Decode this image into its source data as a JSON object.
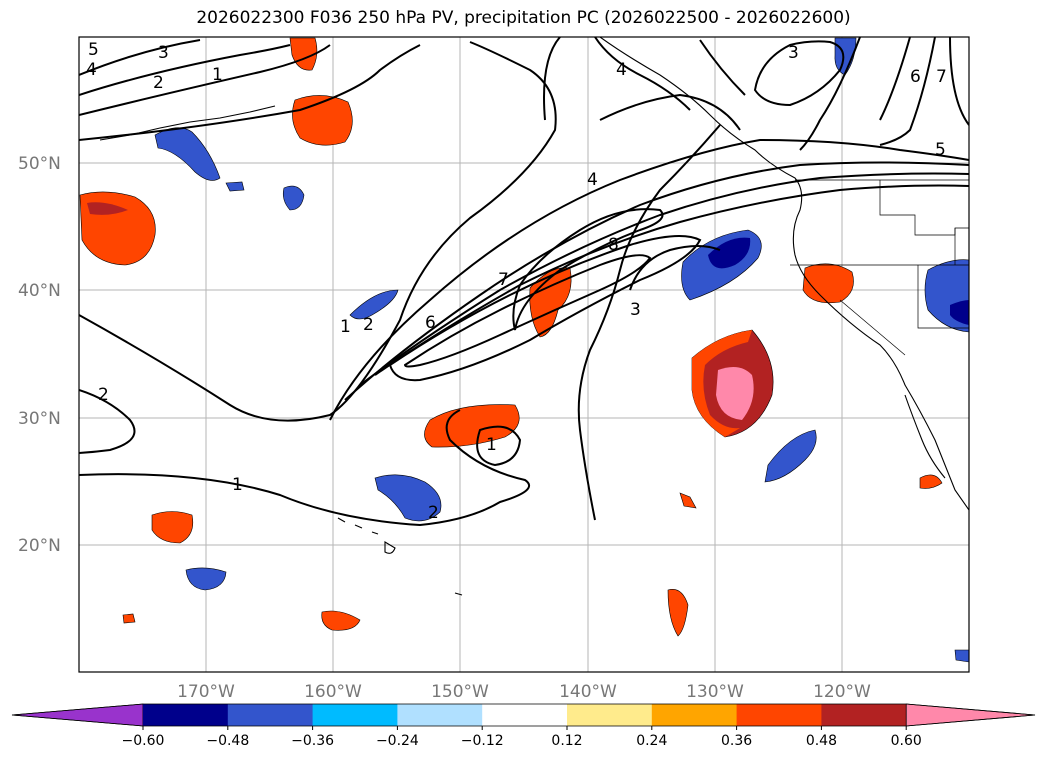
{
  "title": "2026022300 F036 250 hPa PV, precipitation PC (2026022500 - 2026022600)",
  "map": {
    "lat_labels": [
      {
        "label": "50°N",
        "lat": 50
      },
      {
        "label": "40°N",
        "lat": 40
      },
      {
        "label": "30°N",
        "lat": 30
      },
      {
        "label": "20°N",
        "lat": 20
      }
    ],
    "lon_labels": [
      {
        "label": "170°W",
        "lon": -170
      },
      {
        "label": "160°W",
        "lon": -160
      },
      {
        "label": "150°W",
        "lon": -150
      },
      {
        "label": "140°W",
        "lon": -140
      },
      {
        "label": "130°W",
        "lon": -130
      },
      {
        "label": "120°W",
        "lon": -120
      }
    ],
    "extent": {
      "lon_min": -180,
      "lon_max": -110,
      "lat_min": 10,
      "lat_max": 60
    },
    "pv_contour_labels": [
      "5",
      "4",
      "3",
      "2",
      "1",
      "4",
      "3",
      "6",
      "7",
      "5",
      "4",
      "8",
      "7",
      "6",
      "3",
      "1",
      "2",
      "1",
      "2",
      "1",
      "2"
    ]
  },
  "colorbar": {
    "ticks": [
      "−0.60",
      "−0.48",
      "−0.36",
      "−0.24",
      "−0.12",
      "0.12",
      "0.24",
      "0.36",
      "0.48",
      "0.60"
    ],
    "colors": [
      "#9933cc",
      "#00008b",
      "#3355cc",
      "#00bbff",
      "#b0e0ff",
      "#ffffff",
      "#ffeb8c",
      "#ffa500",
      "#ff4500",
      "#b22222",
      "#ff88aa"
    ]
  }
}
